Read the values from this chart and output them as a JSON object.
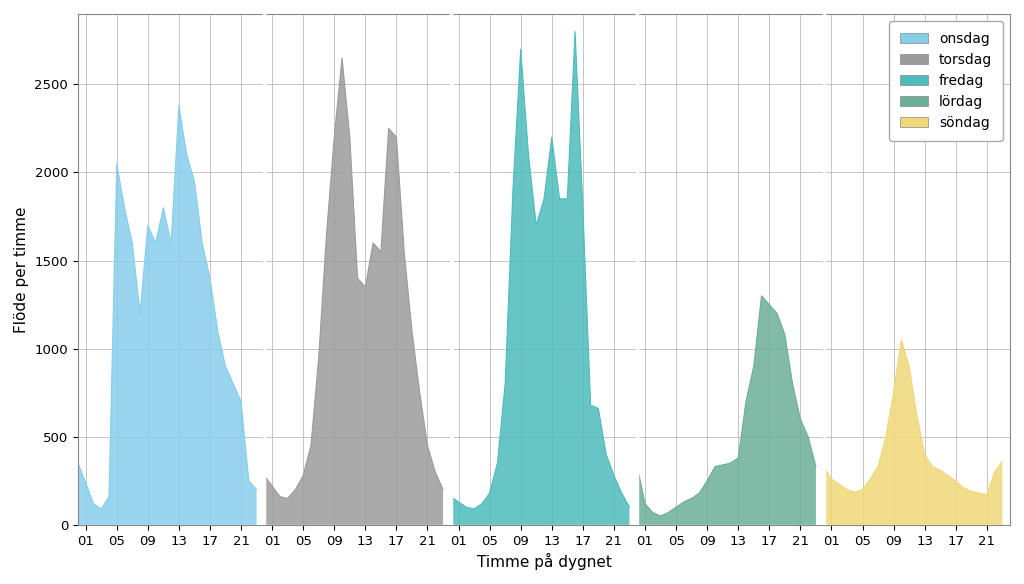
{
  "title": "",
  "xlabel": "Timme på dygnet",
  "ylabel": "Flöde per timme",
  "days": [
    "onsdag",
    "torsdag",
    "fredag",
    "lördag",
    "söndag"
  ],
  "colors": [
    "#87CEEB",
    "#9B9B9B",
    "#4DBBBB",
    "#6BAF98",
    "#F0D878"
  ],
  "ylim": [
    0,
    2900
  ],
  "yticks": [
    0,
    500,
    1000,
    1500,
    2000,
    2500
  ],
  "hours_per_day": 24,
  "tick_labels": [
    "01",
    "05",
    "09",
    "13",
    "17",
    "21"
  ],
  "tick_positions": [
    1,
    5,
    9,
    13,
    17,
    21
  ],
  "day_data": {
    "onsdag": [
      350,
      240,
      120,
      90,
      160,
      2050,
      1800,
      1600,
      1200,
      1700,
      1600,
      1800,
      1600,
      2380,
      2100,
      1950,
      1600,
      1400,
      1100,
      900,
      800,
      700,
      250,
      200
    ],
    "torsdag": [
      280,
      220,
      160,
      150,
      200,
      280,
      450,
      950,
      1650,
      2200,
      2650,
      2200,
      1400,
      1350,
      1600,
      1550,
      2250,
      2200,
      1550,
      1100,
      750,
      450,
      300,
      200
    ],
    "fredag": [
      160,
      130,
      100,
      90,
      120,
      180,
      350,
      800,
      1900,
      2700,
      2100,
      1700,
      1850,
      2200,
      1850,
      1850,
      2800,
      1800,
      680,
      660,
      400,
      280,
      180,
      100
    ],
    "lördag": [
      330,
      120,
      70,
      50,
      70,
      100,
      130,
      150,
      180,
      250,
      330,
      340,
      350,
      380,
      700,
      900,
      1300,
      1250,
      1200,
      1080,
      800,
      600,
      500,
      330
    ],
    "söndag": [
      330,
      260,
      230,
      200,
      185,
      200,
      260,
      330,
      500,
      750,
      1050,
      900,
      620,
      400,
      330,
      310,
      280,
      250,
      210,
      190,
      180,
      170,
      300,
      360
    ]
  }
}
